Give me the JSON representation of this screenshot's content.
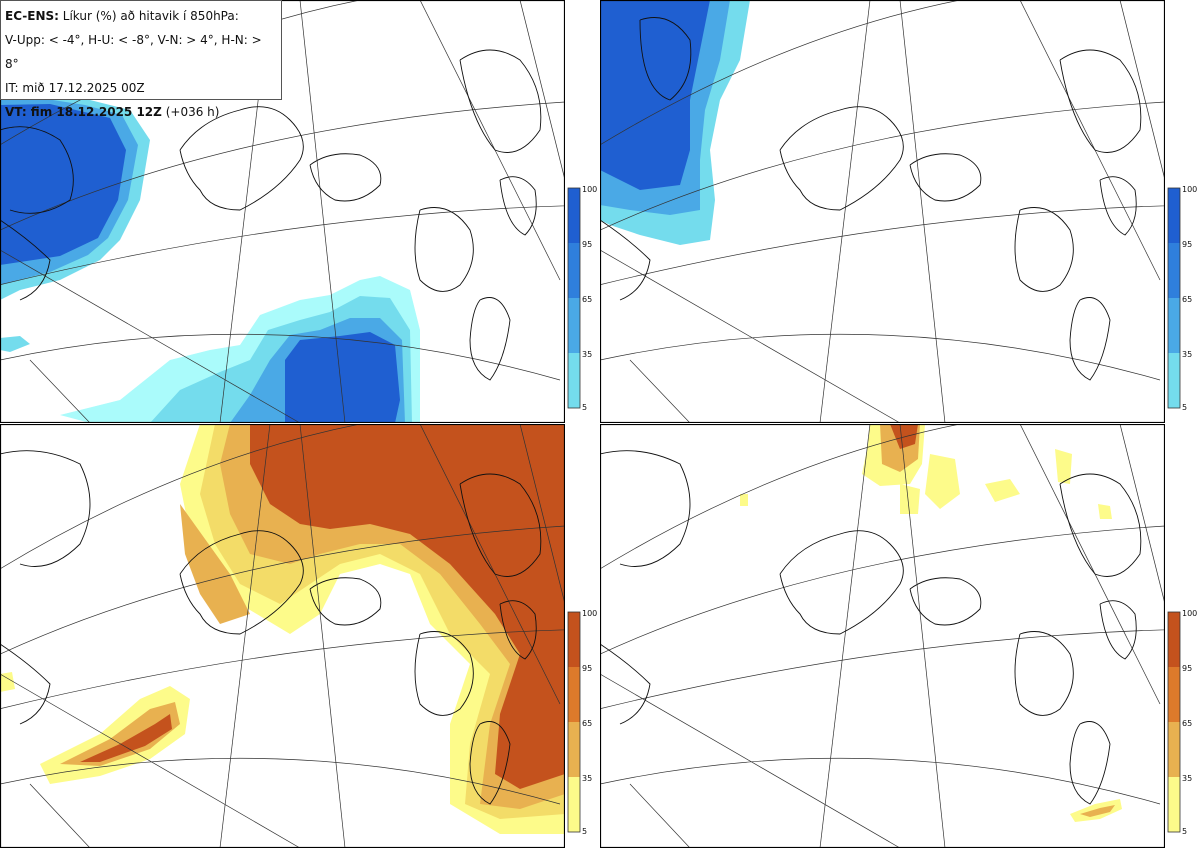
{
  "info": {
    "model": "EC-ENS:",
    "title": "Líkur (%) að hitavik í 850hPa:",
    "legend_line": "V-Upp: < -4°, H-U: < -8°, V-N: > 4°, H-N: > 8°",
    "it_line": "IT: mið 17.12.2025 00Z",
    "vt_label": "VT: fim 18.12.2025 12Z",
    "vt_offset": "(+036 h)"
  },
  "colorbars": {
    "cold": {
      "ticks": [
        "100",
        "95",
        "65",
        "35",
        "5"
      ],
      "colors": [
        "#1f5fd1",
        "#2f7fdc",
        "#4aa9e6",
        "#74dced",
        "#aafbfb"
      ]
    },
    "warm": {
      "ticks": [
        "100",
        "95",
        "65",
        "35",
        "5"
      ],
      "colors": [
        "#c4521d",
        "#dd7a2b",
        "#e8b150",
        "#f3dc68",
        "#fdfb8a"
      ]
    }
  },
  "panels": [
    {
      "id": "V-Upp",
      "scheme": "cold"
    },
    {
      "id": "H-U",
      "scheme": "cold"
    },
    {
      "id": "V-N",
      "scheme": "warm"
    },
    {
      "id": "H-N",
      "scheme": "warm"
    }
  ]
}
